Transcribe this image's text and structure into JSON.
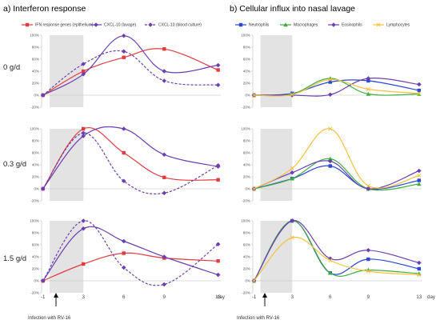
{
  "colors": {
    "red": "#e23a3e",
    "purple": "#6a3fb0",
    "blue": "#2a47d6",
    "green": "#3fae3f",
    "yellow": "#f5c242",
    "shade": "#e3e3e3",
    "axis": "#bdbdbd"
  },
  "panels": {
    "a_title": "a) Interferon response",
    "b_title": "b) Cellular influx into nasal lavage"
  },
  "rows": [
    "0 g/d",
    "0.3 g/d",
    "1.5 g/d"
  ],
  "annotations": {
    "infection": "Infection with RV-16",
    "day": "day"
  },
  "chart_data": [
    {
      "type": "line",
      "panel": "a) Interferon response",
      "row_label": "0 g/d",
      "x": [
        0,
        3,
        6,
        9,
        13
      ],
      "xticks": [
        "-1",
        "3",
        "6",
        "9",
        "13"
      ],
      "ylim": [
        -20,
        100
      ],
      "yticks": [
        "-20%",
        "0%",
        "20%",
        "40%",
        "60%",
        "80%",
        "100%"
      ],
      "shaded_x": [
        0.5,
        3
      ],
      "series": [
        {
          "name": "IFN response genes (epithelium)",
          "color": "#e23a3e",
          "dashed": false,
          "marker": "square",
          "values": [
            0,
            40,
            63,
            77,
            42
          ]
        },
        {
          "name": "CXCL-10 (lavage)",
          "color": "#6a3fb0",
          "dashed": false,
          "marker": "diamond",
          "values": [
            0,
            35,
            99,
            40,
            50
          ]
        },
        {
          "name": "CXCL-10 (blood culture)",
          "color": "#6a3fb0",
          "dashed": true,
          "marker": "diamond",
          "values": [
            0,
            52,
            73,
            24,
            17
          ]
        }
      ]
    },
    {
      "type": "line",
      "panel": "a) Interferon response",
      "row_label": "0.3 g/d",
      "x": [
        0,
        3,
        6,
        9,
        13
      ],
      "xticks": [
        "-1",
        "3",
        "6",
        "9",
        "13"
      ],
      "ylim": [
        -20,
        100
      ],
      "yticks": [
        "-20%",
        "0%",
        "20%",
        "40%",
        "60%",
        "80%",
        "100%"
      ],
      "shaded_x": [
        0.5,
        3
      ],
      "series": [
        {
          "name": "IFN response genes (epithelium)",
          "color": "#e23a3e",
          "dashed": false,
          "marker": "square",
          "values": [
            0,
            100,
            60,
            19,
            15
          ]
        },
        {
          "name": "CXCL-10 (lavage)",
          "color": "#6a3fb0",
          "dashed": false,
          "marker": "diamond",
          "values": [
            0,
            88,
            100,
            57,
            37
          ]
        },
        {
          "name": "CXCL-10 (blood culture)",
          "color": "#6a3fb0",
          "dashed": true,
          "marker": "diamond",
          "values": [
            0,
            93,
            13,
            -7,
            39
          ]
        }
      ]
    },
    {
      "type": "line",
      "panel": "a) Interferon response",
      "row_label": "1.5 g/d",
      "x": [
        0,
        3,
        6,
        9,
        13
      ],
      "xticks": [
        "-1",
        "3",
        "6",
        "9",
        "13"
      ],
      "ylim": [
        -20,
        100
      ],
      "yticks": [
        "-20%",
        "0%",
        "20%",
        "40%",
        "60%",
        "80%",
        "100%"
      ],
      "shaded_x": [
        0.5,
        3
      ],
      "series": [
        {
          "name": "IFN response genes (epithelium)",
          "color": "#e23a3e",
          "dashed": false,
          "marker": "square",
          "values": [
            0,
            28,
            46,
            38,
            33
          ]
        },
        {
          "name": "CXCL-10 (lavage)",
          "color": "#6a3fb0",
          "dashed": false,
          "marker": "diamond",
          "values": [
            0,
            87,
            66,
            40,
            10
          ]
        },
        {
          "name": "CXCL-10 (blood culture)",
          "color": "#6a3fb0",
          "dashed": true,
          "marker": "diamond",
          "values": [
            0,
            100,
            22,
            -6,
            61
          ]
        }
      ]
    },
    {
      "type": "line",
      "panel": "b) Cellular influx into nasal lavage",
      "row_label": "0 g/d",
      "x": [
        0,
        3,
        6,
        9,
        13
      ],
      "xticks": [
        "-1",
        "3",
        "6",
        "9",
        "13"
      ],
      "ylim": [
        -20,
        100
      ],
      "yticks": [
        "-20%",
        "0%",
        "20%",
        "40%",
        "60%",
        "80%",
        "100%"
      ],
      "shaded_x": [
        0.5,
        3
      ],
      "series": [
        {
          "name": "Neutrophils",
          "color": "#2a47d6",
          "marker": "square",
          "values": [
            0,
            3,
            22,
            24,
            8
          ]
        },
        {
          "name": "Macrophages",
          "color": "#3fae3f",
          "marker": "triangle",
          "values": [
            0,
            2,
            28,
            2,
            2
          ]
        },
        {
          "name": "Eosinophils",
          "color": "#6a3fb0",
          "marker": "diamond",
          "values": [
            0,
            0,
            1,
            28,
            18
          ]
        },
        {
          "name": "Lymphocytes",
          "color": "#f5c242",
          "marker": "cross",
          "values": [
            0,
            1,
            26,
            10,
            3
          ]
        }
      ]
    },
    {
      "type": "line",
      "panel": "b) Cellular influx into nasal lavage",
      "row_label": "0.3 g/d",
      "x": [
        0,
        3,
        6,
        9,
        13
      ],
      "xticks": [
        "-1",
        "3",
        "6",
        "9",
        "13"
      ],
      "ylim": [
        -20,
        100
      ],
      "yticks": [
        "-20%",
        "0%",
        "20%",
        "40%",
        "60%",
        "80%",
        "100%"
      ],
      "shaded_x": [
        0.5,
        3
      ],
      "series": [
        {
          "name": "Neutrophils",
          "color": "#2a47d6",
          "marker": "square",
          "values": [
            0,
            17,
            38,
            0,
            14
          ]
        },
        {
          "name": "Macrophages",
          "color": "#3fae3f",
          "marker": "triangle",
          "values": [
            0,
            17,
            50,
            0,
            8
          ]
        },
        {
          "name": "Eosinophils",
          "color": "#6a3fb0",
          "marker": "diamond",
          "values": [
            0,
            27,
            46,
            0,
            30
          ]
        },
        {
          "name": "Lymphocytes",
          "color": "#f5c242",
          "marker": "cross",
          "values": [
            0,
            34,
            100,
            5,
            22
          ]
        }
      ]
    },
    {
      "type": "line",
      "panel": "b) Cellular influx into nasal lavage",
      "row_label": "1.5 g/d",
      "x": [
        0,
        3,
        6,
        9,
        13
      ],
      "xticks": [
        "-1",
        "3",
        "6",
        "9",
        "13"
      ],
      "ylim": [
        -20,
        100
      ],
      "yticks": [
        "-20%",
        "0%",
        "20%",
        "40%",
        "60%",
        "80%",
        "100%"
      ],
      "shaded_x": [
        0.5,
        3
      ],
      "series": [
        {
          "name": "Neutrophils",
          "color": "#2a47d6",
          "marker": "square",
          "values": [
            0,
            100,
            13,
            36,
            20
          ]
        },
        {
          "name": "Macrophages",
          "color": "#3fae3f",
          "marker": "triangle",
          "values": [
            0,
            100,
            13,
            18,
            12
          ]
        },
        {
          "name": "Eosinophils",
          "color": "#6a3fb0",
          "marker": "diamond",
          "values": [
            0,
            100,
            37,
            51,
            30
          ]
        },
        {
          "name": "Lymphocytes",
          "color": "#f5c242",
          "marker": "cross",
          "values": [
            0,
            72,
            34,
            16,
            10
          ]
        }
      ]
    }
  ]
}
